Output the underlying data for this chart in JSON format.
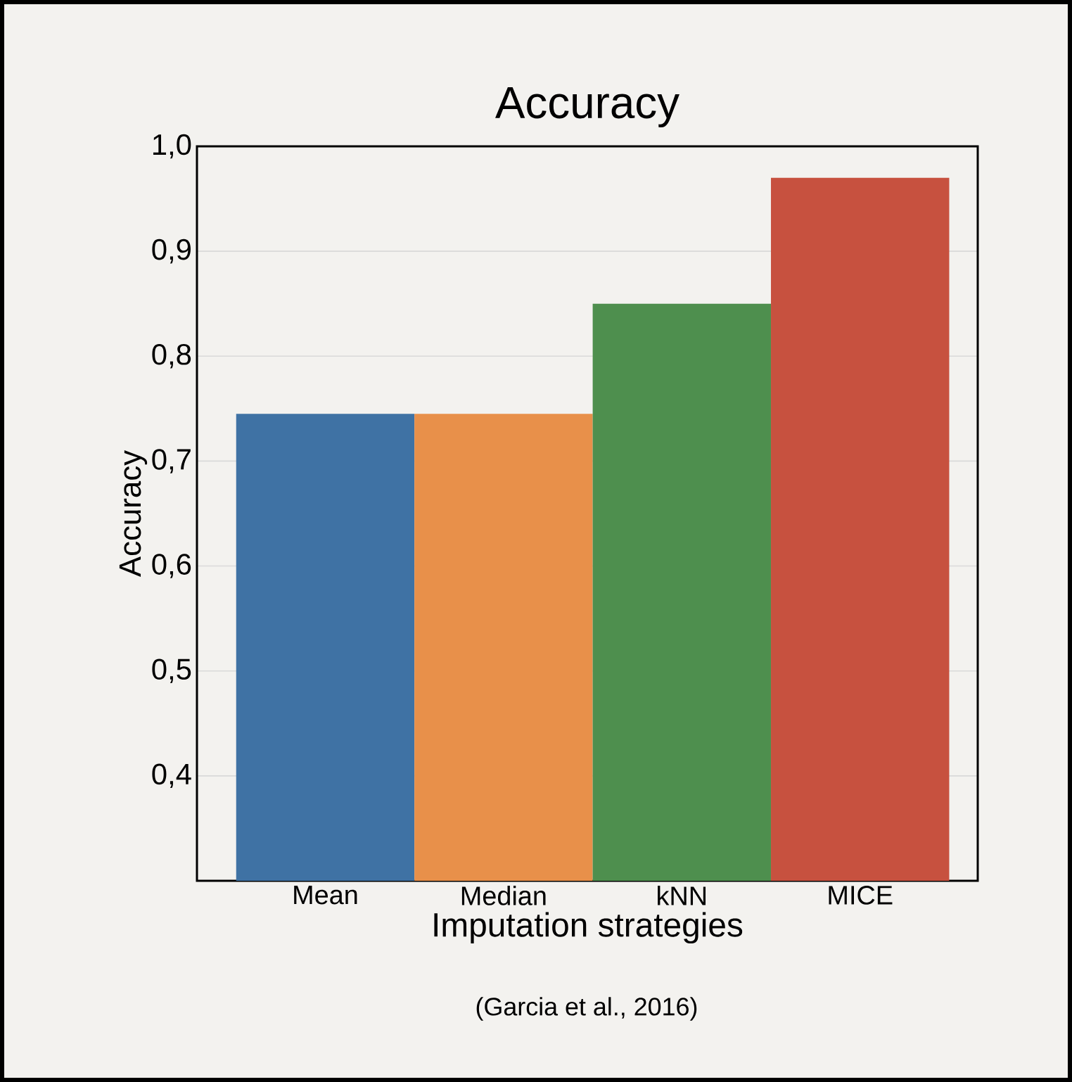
{
  "chart_data": {
    "type": "bar",
    "title": "Accuracy",
    "xlabel": "Imputation strategies",
    "ylabel": "Accuracy",
    "categories": [
      "Mean",
      "Median",
      "kNN",
      "MICE"
    ],
    "values": [
      0.745,
      0.745,
      0.85,
      0.97
    ],
    "colors": [
      "#3f72a4",
      "#e8904a",
      "#4e8f4e",
      "#c7513f"
    ],
    "ylim": [
      0.3,
      1.0
    ],
    "yticks": [
      {
        "value": 0.4,
        "label": "0,4"
      },
      {
        "value": 0.5,
        "label": "0,5"
      },
      {
        "value": 0.6,
        "label": "0,6"
      },
      {
        "value": 0.7,
        "label": "0,7"
      },
      {
        "value": 0.8,
        "label": "0,8"
      },
      {
        "value": 0.9,
        "label": "0,9"
      },
      {
        "value": 1.0,
        "label": "1,0"
      }
    ],
    "grid": "y",
    "annotations": [
      "(Garcia et al., 2016)"
    ]
  }
}
